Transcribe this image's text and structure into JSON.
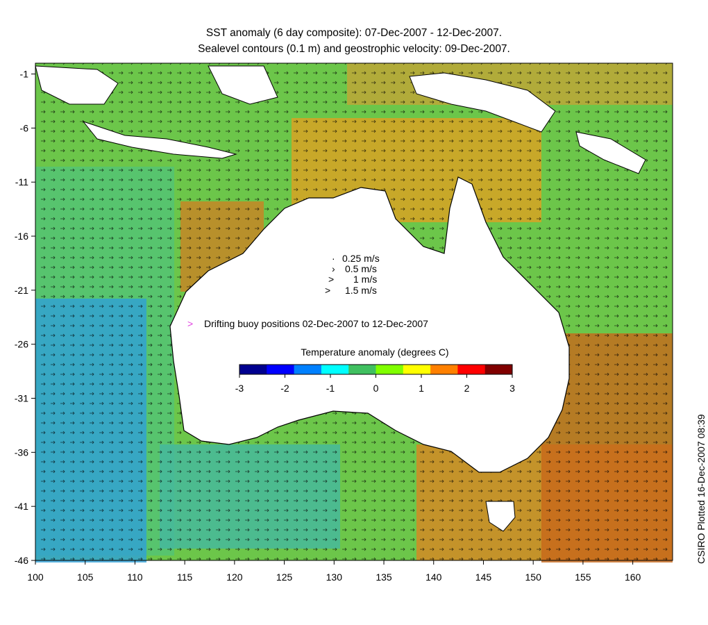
{
  "title": {
    "line1": "SST anomaly (6 day composite): 07-Dec-2007 - 12-Dec-2007.",
    "line2": "Sealevel contours (0.1 m) and geostrophic velocity: 09-Dec-2007."
  },
  "credit": "CSIRO Plotted 16-Dec-2007 08:39",
  "map": {
    "lon_range": [
      100,
      164
    ],
    "lat_range": [
      -46,
      0
    ],
    "lon_ticks": [
      "100",
      "105",
      "110",
      "115",
      "120",
      "125",
      "130",
      "135",
      "140",
      "145",
      "150",
      "155",
      "160"
    ],
    "lat_ticks": [
      "-1",
      "-6",
      "-11",
      "-16",
      "-21",
      "-26",
      "-31",
      "-36",
      "-41",
      "-46"
    ]
  },
  "velocity_legend": {
    "items": [
      "0.25 m/s",
      "0.5 m/s",
      "1 m/s",
      "1.5 m/s"
    ]
  },
  "buoy_legend": {
    "label": "Drifting buoy positions 02-Dec-2007 to 12-Dec-2007",
    "marker": ">",
    "color": "#e040e0"
  },
  "colorbar": {
    "title": "Temperature anomaly (degrees C)",
    "ticks": [
      "-3",
      "-2",
      "-1",
      "0",
      "1",
      "2",
      "3"
    ],
    "colors": [
      "#00008f",
      "#0000ff",
      "#0080ff",
      "#00ffff",
      "#40c060",
      "#80ff00",
      "#ffff00",
      "#ff8000",
      "#ff0000",
      "#800000"
    ]
  }
}
